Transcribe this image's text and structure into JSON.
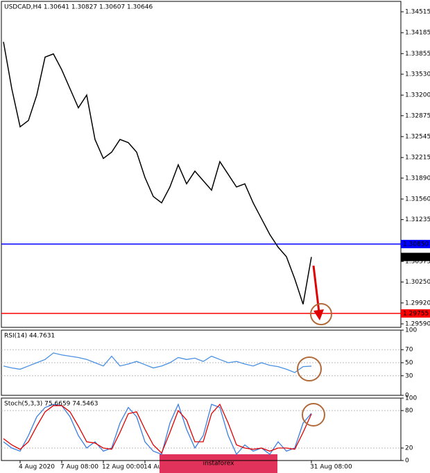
{
  "chart_data": [
    {
      "type": "line",
      "title": "USDCAD,H4  1.30641 1.30827 1.30607 1.30646",
      "categories": [
        null,
        null,
        "4 Aug 2020",
        null,
        null,
        null,
        null,
        "7 Aug 08:00",
        null,
        null,
        null,
        null,
        "12 Aug 00:00",
        null,
        null,
        null,
        null,
        "14 Aug 16:00",
        null,
        null,
        null,
        null,
        null,
        null,
        null,
        null,
        null,
        null,
        null,
        null,
        null,
        null,
        null,
        null,
        null,
        null,
        null,
        "31 Aug 08:00"
      ],
      "series": [
        {
          "color": "#000000",
          "values": [
            1.3404,
            1.333,
            1.327,
            1.328,
            1.332,
            1.338,
            1.3385,
            1.336,
            1.333,
            1.33,
            1.332,
            1.325,
            1.322,
            1.323,
            1.325,
            1.3245,
            1.323,
            1.319,
            1.316,
            1.315,
            1.3175,
            1.321,
            1.318,
            1.32,
            1.3185,
            1.317,
            1.3215,
            1.3195,
            1.3175,
            1.318,
            1.315,
            1.3125,
            1.31,
            1.308,
            1.3065,
            1.303,
            1.299,
            1.30646
          ]
        }
      ],
      "ylim": [
        1.29535,
        1.34679
      ],
      "yticks": [
        1.34515,
        1.34185,
        1.33855,
        {
          "value": 1.3353,
          "label": "1.33530"
        },
        {
          "value": 1.332,
          "label": "1.33200"
        },
        1.32875,
        1.32545,
        1.32215,
        {
          "value": 1.3189,
          "label": "1.31890"
        },
        {
          "value": 1.3156,
          "label": "1.31560"
        },
        1.31235,
        1.30575,
        {
          "value": 1.3025,
          "label": "1.30250"
        },
        {
          "value": 1.2992,
          "label": "1.29920"
        },
        {
          "value": 1.2959,
          "label": "1.29590"
        }
      ],
      "levels": [
        {
          "value": 1.3085,
          "label": "1.30850",
          "color": "#0000ff"
        },
        {
          "value": 1.29755,
          "label": "1.29755",
          "color": "#ff0000"
        },
        {
          "value": 1.30646,
          "label": "1.30646",
          "color": "#000000"
        }
      ],
      "watermark": "instaforex"
    },
    {
      "type": "line",
      "title": "RSI(14) 44.7631",
      "series": [
        {
          "color": "#4a90e2",
          "values": [
            45,
            42,
            40,
            45,
            50,
            55,
            65,
            62,
            60,
            58,
            55,
            50,
            45,
            60,
            45,
            48,
            52,
            47,
            42,
            45,
            50,
            58,
            55,
            57,
            52,
            60,
            55,
            50,
            52,
            48,
            45,
            50,
            46,
            44,
            40,
            35,
            44,
            44.7631
          ]
        }
      ],
      "ylim": [
        0,
        100
      ],
      "yticks": [
        100,
        70,
        50,
        30,
        0
      ]
    },
    {
      "type": "line",
      "title": "Stoch(5,3,3) 75.6659 74.5463",
      "series": [
        {
          "color": "#3a7de0",
          "values": [
            30,
            20,
            15,
            40,
            70,
            85,
            90,
            88,
            70,
            40,
            20,
            30,
            15,
            20,
            60,
            85,
            70,
            30,
            15,
            10,
            60,
            90,
            50,
            20,
            40,
            90,
            85,
            40,
            10,
            25,
            15,
            20,
            10,
            30,
            15,
            20,
            60,
            75.6659
          ]
        },
        {
          "color": "#e00000",
          "values": [
            35,
            25,
            18,
            30,
            55,
            78,
            88,
            88,
            78,
            55,
            30,
            28,
            20,
            18,
            45,
            75,
            78,
            50,
            25,
            12,
            45,
            80,
            65,
            30,
            30,
            75,
            90,
            60,
            25,
            20,
            18,
            20,
            15,
            20,
            20,
            18,
            45,
            74.5463
          ]
        }
      ],
      "ylim": [
        0,
        100
      ],
      "yticks": [
        100,
        80,
        20,
        0
      ]
    }
  ]
}
